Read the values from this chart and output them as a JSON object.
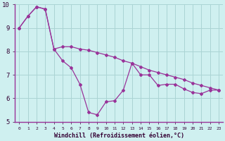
{
  "xlabel": "Windchill (Refroidissement éolien,°C)",
  "bg_color": "#cff0f0",
  "grid_color": "#aad4d4",
  "line_color": "#993399",
  "spine_color": "#993399",
  "tick_color": "#330033",
  "x_hours": [
    0,
    1,
    2,
    3,
    4,
    5,
    6,
    7,
    8,
    9,
    10,
    11,
    12,
    13,
    14,
    15,
    16,
    17,
    18,
    19,
    20,
    21,
    22,
    23
  ],
  "windchill_values": [
    9.0,
    9.5,
    9.9,
    9.8,
    8.1,
    7.6,
    7.3,
    6.6,
    5.4,
    5.3,
    5.85,
    5.9,
    6.35,
    7.5,
    7.0,
    7.0,
    6.55,
    6.6,
    6.6,
    6.4,
    6.25,
    6.2,
    6.35,
    6.35
  ],
  "temp_values": [
    9.0,
    9.5,
    9.9,
    9.8,
    8.1,
    8.2,
    8.2,
    8.1,
    8.05,
    7.95,
    7.85,
    7.75,
    7.6,
    7.5,
    7.35,
    7.2,
    7.1,
    7.0,
    6.9,
    6.8,
    6.65,
    6.55,
    6.45,
    6.35
  ],
  "ylim": [
    5,
    10
  ],
  "xlim_min": -0.5,
  "xlim_max": 23.5,
  "yticks": [
    5,
    6,
    7,
    8,
    9,
    10
  ],
  "xticks": [
    0,
    1,
    2,
    3,
    4,
    5,
    6,
    7,
    8,
    9,
    10,
    11,
    12,
    13,
    14,
    15,
    16,
    17,
    18,
    19,
    20,
    21,
    22,
    23
  ]
}
